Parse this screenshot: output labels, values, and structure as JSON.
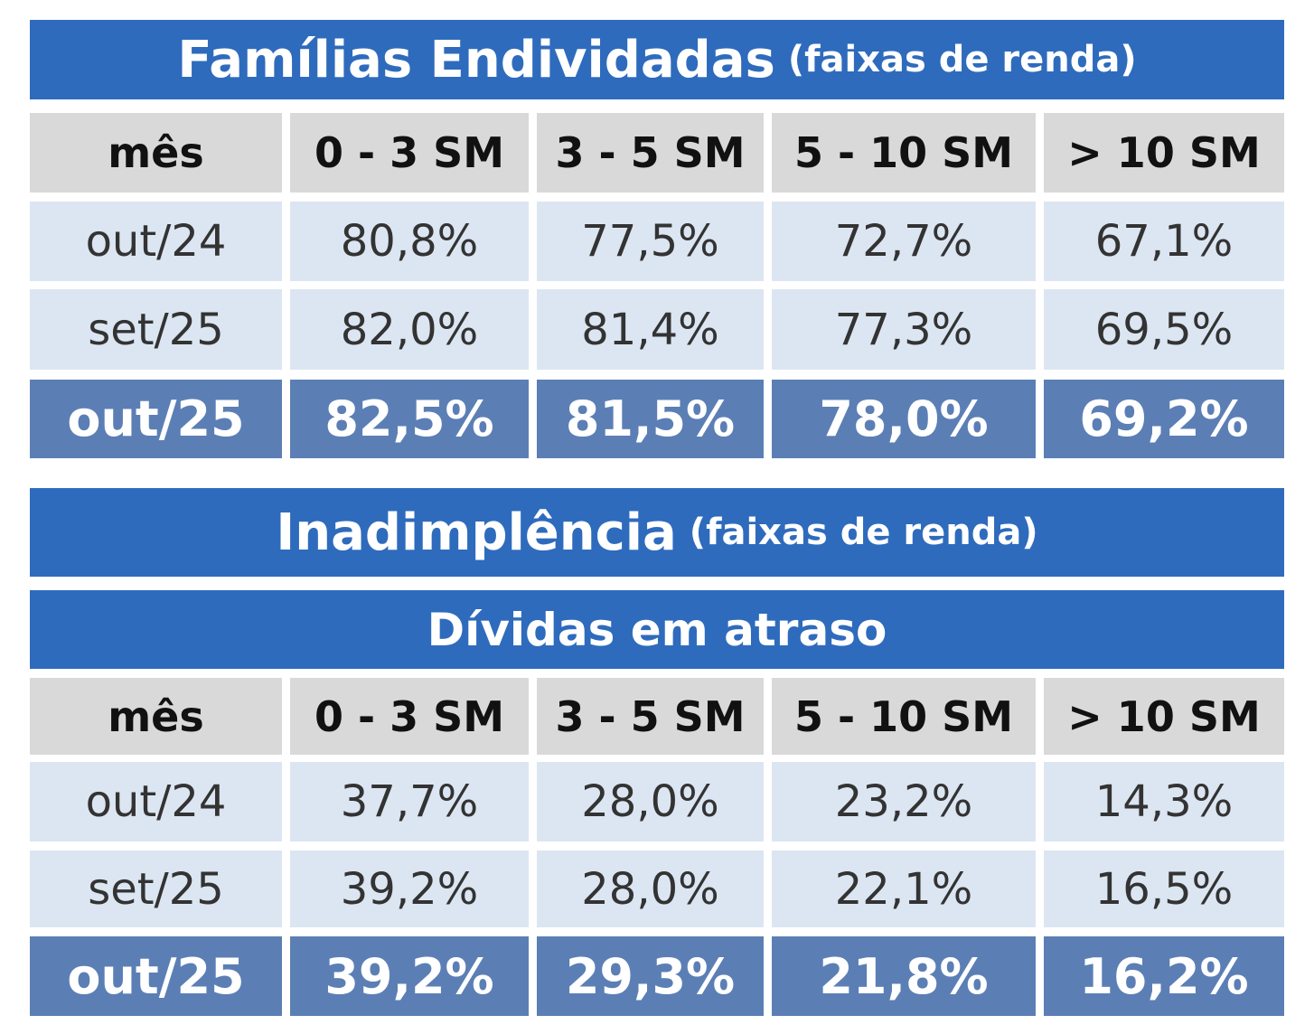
{
  "tables": [
    {
      "title": "Famílias Endividadas",
      "title_note": "(faixas de renda)",
      "header": [
        "mês",
        "0 - 3 SM",
        "3 - 5 SM",
        "5 - 10 SM",
        "> 10 SM"
      ],
      "rows": [
        [
          "out/24",
          "80,8%",
          "77,5%",
          "72,7%",
          "67,1%"
        ],
        [
          "set/25",
          "82,0%",
          "81,4%",
          "77,3%",
          "69,5%"
        ],
        [
          "out/25",
          "82,5%",
          "81,5%",
          "78,0%",
          "69,2%"
        ]
      ]
    },
    {
      "title": "Inadimplência",
      "title_note": "(faixas de renda)",
      "subtitle": "Dívidas em atraso",
      "header": [
        "mês",
        "0 - 3 SM",
        "3 - 5 SM",
        "5 - 10 SM",
        "> 10 SM"
      ],
      "rows": [
        [
          "out/24",
          "37,7%",
          "28,0%",
          "23,2%",
          "14,3%"
        ],
        [
          "set/25",
          "39,2%",
          "28,0%",
          "22,1%",
          "16,5%"
        ],
        [
          "out/25",
          "39,2%",
          "29,3%",
          "21,8%",
          "16,2%"
        ]
      ]
    }
  ]
}
